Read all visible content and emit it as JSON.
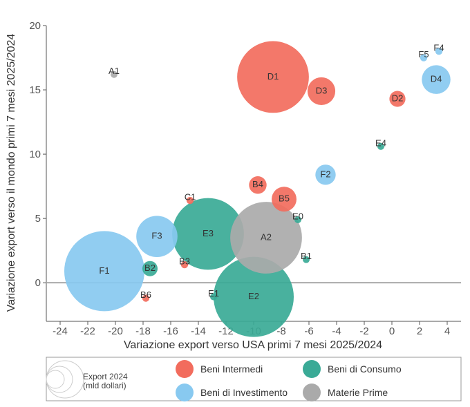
{
  "chart_data": {
    "type": "scatter",
    "title": "",
    "xlabel": "Variazione export verso USA primi 7 mesi 2025/2024",
    "ylabel": "Variazione export verso il mondo primi 7 mesi 2025/2024",
    "xlim": [
      -25,
      5
    ],
    "ylim": [
      -3,
      20
    ],
    "x_ticks": [
      -24,
      -22,
      -20,
      -18,
      -16,
      -14,
      -12,
      -10,
      -8,
      -6,
      -4,
      -2,
      0,
      2,
      4
    ],
    "y_ticks": [
      0,
      5,
      10,
      15,
      20
    ],
    "zero_line": true,
    "grid": false,
    "legend": {
      "placement": "bottom",
      "size_label_line1": "Export 2024",
      "size_label_line2": "(mld dollari)",
      "categories": [
        {
          "name": "Beni Intermedi",
          "color": "#f26c5d"
        },
        {
          "name": "Beni di Consumo",
          "color": "#3aaa96"
        },
        {
          "name": "Beni di Investimento",
          "color": "#88c9f0"
        },
        {
          "name": "Materie Prime",
          "color": "#aaaaaa"
        }
      ]
    },
    "series": [
      {
        "name": "Beni Intermedi",
        "color": "#f26c5d",
        "points": [
          {
            "label": "D1",
            "x": -8.6,
            "y": 16.0,
            "size": 1
          },
          {
            "label": "D3",
            "x": -5.1,
            "y": 14.9,
            "size": 0.15
          },
          {
            "label": "D2",
            "x": 0.4,
            "y": 14.3,
            "size": 0.05
          },
          {
            "label": "B4",
            "x": -9.7,
            "y": 7.6,
            "size": 0.06
          },
          {
            "label": "B5",
            "x": -7.8,
            "y": 6.5,
            "size": 0.12
          },
          {
            "label": "C1",
            "x": -14.6,
            "y": 6.4,
            "size": 0.01
          },
          {
            "label": "B3",
            "x": -15.0,
            "y": 1.4,
            "size": 0.01
          },
          {
            "label": "B6",
            "x": -17.8,
            "y": -1.2,
            "size": 0.01
          }
        ]
      },
      {
        "name": "Beni di Consumo",
        "color": "#3aaa96",
        "points": [
          {
            "label": "E3",
            "x": -13.3,
            "y": 3.8,
            "size": 1.0
          },
          {
            "label": "E2",
            "x": -10.0,
            "y": -1.1,
            "size": 1.25
          },
          {
            "label": "E4",
            "x": -0.8,
            "y": 10.6,
            "size": 0.008
          },
          {
            "label": "E0",
            "x": -6.8,
            "y": 4.9,
            "size": 0.008
          },
          {
            "label": "B1",
            "x": -6.2,
            "y": 1.8,
            "size": 0.008
          },
          {
            "label": "B2",
            "x": -17.5,
            "y": 1.1,
            "size": 0.045
          },
          {
            "label": "E1",
            "x": -12.9,
            "y": -1.1,
            "size": 0.008
          }
        ]
      },
      {
        "name": "Beni di Investimento",
        "color": "#88c9f0",
        "points": [
          {
            "label": "F1",
            "x": -20.8,
            "y": 0.9,
            "size": 1.25
          },
          {
            "label": "F3",
            "x": -17.0,
            "y": 3.6,
            "size": 0.33
          },
          {
            "label": "F2",
            "x": -4.8,
            "y": 8.4,
            "size": 0.08
          },
          {
            "label": "D4",
            "x": 3.2,
            "y": 15.8,
            "size": 0.16
          },
          {
            "label": "F4",
            "x": 3.4,
            "y": 18.0,
            "size": 0.01
          },
          {
            "label": "F5",
            "x": 2.3,
            "y": 17.5,
            "size": 0.01
          }
        ]
      },
      {
        "name": "Materie Prime",
        "color": "#aaaaaa",
        "points": [
          {
            "label": "A2",
            "x": -9.1,
            "y": 3.5,
            "size": 1.0
          },
          {
            "label": "A1",
            "x": -20.1,
            "y": 16.2,
            "size": 0.008
          }
        ]
      }
    ]
  }
}
